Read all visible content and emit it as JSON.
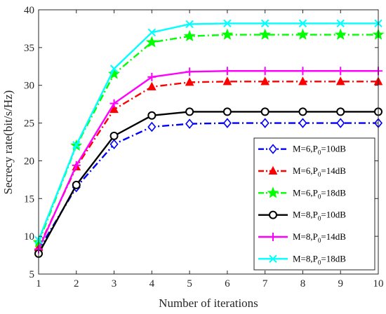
{
  "chart_data": {
    "type": "line",
    "title": "",
    "xlabel": "Number of iterations",
    "ylabel": "Secrecy rate(bit/s/Hz)",
    "xlim": [
      1,
      10
    ],
    "ylim": [
      5,
      40
    ],
    "x": [
      1,
      2,
      3,
      4,
      5,
      6,
      7,
      8,
      9,
      10
    ],
    "xticks": [
      "1",
      "2",
      "3",
      "4",
      "5",
      "6",
      "7",
      "8",
      "9",
      "10"
    ],
    "yticks": [
      "5",
      "10",
      "15",
      "20",
      "25",
      "30",
      "35",
      "40"
    ],
    "grid": false,
    "legend_position": "bottom-right",
    "series": [
      {
        "name": "M=6,P0=10dB",
        "legend_main": "M=6,P",
        "legend_sub": "0",
        "legend_tail": "=10dB",
        "color": "#0000ff",
        "line_style": "dashdot",
        "marker": "diamond",
        "values": [
          8.2,
          16.5,
          22.2,
          24.5,
          24.9,
          25.0,
          25.0,
          25.0,
          25.0,
          25.0
        ]
      },
      {
        "name": "M=6,P0=14dB",
        "legend_main": "M=6,P",
        "legend_sub": "0",
        "legend_tail": "=14dB",
        "color": "#ff0000",
        "line_style": "dashdot",
        "marker": "triangle",
        "values": [
          8.5,
          19.2,
          26.8,
          29.8,
          30.4,
          30.5,
          30.5,
          30.5,
          30.5,
          30.5
        ]
      },
      {
        "name": "M=6,P0=18dB",
        "legend_main": "M=6,P",
        "legend_sub": "0",
        "legend_tail": "=18dB",
        "color": "#00ff00",
        "line_style": "dashdot",
        "marker": "star",
        "values": [
          9.2,
          22.0,
          31.5,
          35.7,
          36.5,
          36.7,
          36.7,
          36.7,
          36.7,
          36.7
        ]
      },
      {
        "name": "M=8,P0=10dB",
        "legend_main": "M=8,P",
        "legend_sub": "0",
        "legend_tail": "=10dB",
        "color": "#000000",
        "line_style": "solid",
        "marker": "circle",
        "values": [
          7.7,
          16.8,
          23.3,
          26.0,
          26.5,
          26.5,
          26.5,
          26.5,
          26.5,
          26.5
        ]
      },
      {
        "name": "M=8,P0=14dB",
        "legend_main": "M=8,P",
        "legend_sub": "0",
        "legend_tail": "=14dB",
        "color": "#ff00ff",
        "line_style": "solid",
        "marker": "plus",
        "values": [
          8.3,
          19.4,
          27.6,
          31.1,
          31.8,
          31.9,
          31.9,
          31.9,
          31.9,
          31.9
        ]
      },
      {
        "name": "M=8,P0=18dB",
        "legend_main": "M=8,P",
        "legend_sub": "0",
        "legend_tail": "=18dB",
        "color": "#00ffff",
        "line_style": "solid",
        "marker": "cross",
        "values": [
          9.5,
          22.1,
          32.2,
          37.0,
          38.1,
          38.2,
          38.2,
          38.2,
          38.2,
          38.2
        ]
      }
    ]
  }
}
